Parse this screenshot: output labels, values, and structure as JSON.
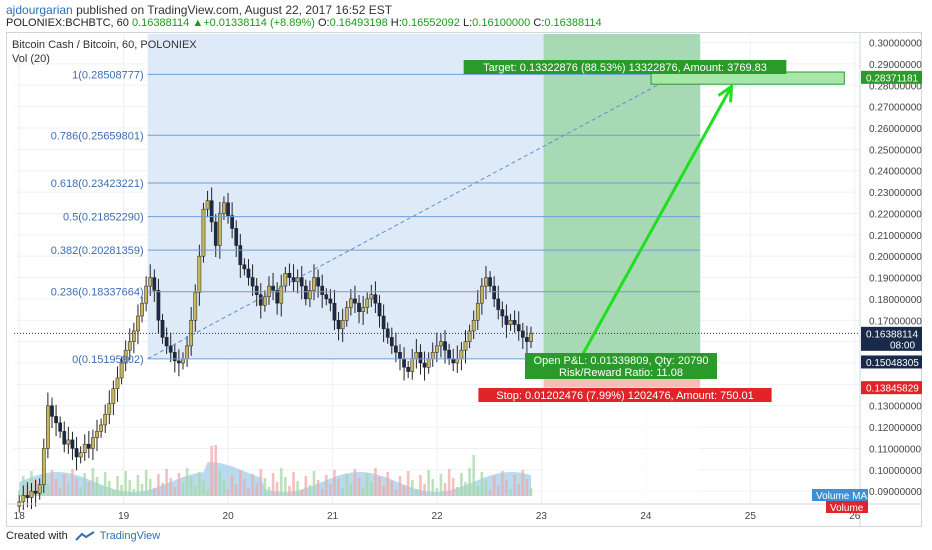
{
  "header": {
    "user": "ajdourgarian",
    "published": "published on TradingView.com, August 22, 2017 16:52 EST",
    "symbol": "POLONIEX:BCHBTC, 60",
    "last": "0.16388114",
    "arrow": "▲",
    "change": "+0.01338114 (+8.89%)",
    "o_label": "O:",
    "o": "0.16493198",
    "h_label": "H:",
    "h": "0.16552092",
    "l_label": "L:",
    "l": "0.16100000",
    "c_label": "C:",
    "c": "0.16388114"
  },
  "chart_title": "Bitcoin Cash / Bitcoin, 60, POLONIEX",
  "indicator": "Vol (20)",
  "footer": {
    "created": "Created with",
    "brand": "TradingView"
  },
  "colors": {
    "up": "#c8b560",
    "down": "#1a2a4a",
    "fib": "#6a9fd8",
    "fib_zone": "#dce8f8",
    "target_zone": "#9fd6a9",
    "stop_zone": "#f4b2b2",
    "arrow": "#22dd22",
    "volume_area": "#9ecae8",
    "price_tag": "#1a2a4a",
    "green_tag": "#2a9a2a",
    "red_tag": "#e0242a"
  },
  "chart_data": {
    "type": "candlestick",
    "title": "Bitcoin Cash / Bitcoin, 60, POLONIEX",
    "x_ticks": [
      "18",
      "19",
      "20",
      "21",
      "22",
      "23",
      "24",
      "25",
      "26"
    ],
    "y_ticks": [
      "0.30000000",
      "0.29000000",
      "0.28000000",
      "0.27000000",
      "0.26000000",
      "0.25000000",
      "0.24000000",
      "0.23000000",
      "0.22000000",
      "0.21000000",
      "0.20000000",
      "0.19000000",
      "0.18000000",
      "0.17000000",
      "0.16000000",
      "0.15000000",
      "0.14000000",
      "0.13000000",
      "0.12000000",
      "0.11000000",
      "0.10000000",
      "0.09000000"
    ],
    "ylim": [
      0.084,
      0.304
    ],
    "xlim": [
      17.95,
      26.05
    ],
    "fib_levels": [
      {
        "label": "1(0.28508777)",
        "value": 0.28508777
      },
      {
        "label": "0.786(0.25659801)",
        "value": 0.25659801
      },
      {
        "label": "0.618(0.23423221)",
        "value": 0.23423221
      },
      {
        "label": "0.5(0.21852290)",
        "value": 0.2185229
      },
      {
        "label": "0.382(0.20281359)",
        "value": 0.20281359
      },
      {
        "label": "0.236(0.18337664)",
        "value": 0.18337664
      },
      {
        "label": "0(0.15195802)",
        "value": 0.15195802
      }
    ],
    "fib_range": {
      "x_start": 19.23,
      "x_end": 24.52
    },
    "position": {
      "entry": 0.15048305,
      "target": 0.28371181,
      "stop": 0.13845829,
      "x_start": 23.02,
      "x_end": 24.52,
      "target_label": "Target: 0.13322876 (88.53%) 13322876, Amount: 3769.83",
      "stop_label": "Stop: 0.01202476 (7.99%) 1202476, Amount: 750.01",
      "pl_label": "Open P&L: 0.01339809, Qty: 20790",
      "rr_label": "Risk/Reward Ratio: 11.08"
    },
    "target_box": {
      "x_start": 24.05,
      "x_end": 25.9,
      "low": 0.2805,
      "high": 0.2862
    },
    "price_tags": [
      {
        "value": 0.28371181,
        "label": "0.28371181",
        "style": "green"
      },
      {
        "value": 0.16388114,
        "label": "0.16388114",
        "style": "dark",
        "sub": "08:00"
      },
      {
        "value": 0.15048305,
        "label": "0.15048305",
        "style": "dark"
      },
      {
        "value": 0.13845829,
        "label": "0.13845829",
        "style": "red"
      }
    ],
    "legend_tags": [
      "Volume MA",
      "Volume"
    ],
    "last_price": 0.16388114,
    "fib_trend": {
      "from": [
        19.23,
        0.152
      ],
      "to": [
        24.3,
        0.285
      ]
    },
    "projection_arrow": {
      "from": [
        23.4,
        0.1545
      ],
      "to": [
        24.82,
        0.2795
      ]
    },
    "candles_close": [
      0.085,
      0.088,
      0.087,
      0.09,
      0.089,
      0.093,
      0.11,
      0.13,
      0.125,
      0.122,
      0.118,
      0.112,
      0.114,
      0.11,
      0.106,
      0.108,
      0.112,
      0.11,
      0.115,
      0.118,
      0.121,
      0.126,
      0.131,
      0.138,
      0.143,
      0.15,
      0.156,
      0.16,
      0.165,
      0.172,
      0.178,
      0.186,
      0.19,
      0.184,
      0.17,
      0.162,
      0.158,
      0.155,
      0.151,
      0.15,
      0.152,
      0.158,
      0.17,
      0.183,
      0.2,
      0.222,
      0.226,
      0.216,
      0.205,
      0.22,
      0.225,
      0.219,
      0.213,
      0.205,
      0.196,
      0.194,
      0.19,
      0.186,
      0.182,
      0.177,
      0.181,
      0.186,
      0.184,
      0.178,
      0.186,
      0.192,
      0.19,
      0.188,
      0.19,
      0.186,
      0.18,
      0.184,
      0.19,
      0.186,
      0.182,
      0.18,
      0.178,
      0.17,
      0.166,
      0.17,
      0.176,
      0.18,
      0.178,
      0.174,
      0.176,
      0.18,
      0.182,
      0.178,
      0.172,
      0.166,
      0.162,
      0.158,
      0.155,
      0.152,
      0.148,
      0.146,
      0.152,
      0.155,
      0.15,
      0.148,
      0.152,
      0.155,
      0.158,
      0.16,
      0.156,
      0.152,
      0.15,
      0.152,
      0.156,
      0.16,
      0.165,
      0.17,
      0.178,
      0.186,
      0.19,
      0.186,
      0.18,
      0.175,
      0.172,
      0.168,
      0.17,
      0.168,
      0.165,
      0.162,
      0.16,
      0.164
    ],
    "candles_open": [
      0.083,
      0.085,
      0.088,
      0.087,
      0.09,
      0.089,
      0.093,
      0.11,
      0.13,
      0.125,
      0.122,
      0.118,
      0.112,
      0.114,
      0.11,
      0.106,
      0.108,
      0.112,
      0.11,
      0.115,
      0.118,
      0.121,
      0.126,
      0.131,
      0.138,
      0.143,
      0.15,
      0.156,
      0.16,
      0.165,
      0.172,
      0.178,
      0.186,
      0.19,
      0.184,
      0.17,
      0.162,
      0.158,
      0.155,
      0.151,
      0.15,
      0.152,
      0.158,
      0.17,
      0.183,
      0.2,
      0.222,
      0.226,
      0.216,
      0.205,
      0.22,
      0.225,
      0.219,
      0.213,
      0.205,
      0.196,
      0.194,
      0.19,
      0.186,
      0.182,
      0.177,
      0.181,
      0.186,
      0.184,
      0.178,
      0.186,
      0.192,
      0.19,
      0.188,
      0.19,
      0.186,
      0.18,
      0.184,
      0.19,
      0.186,
      0.182,
      0.18,
      0.178,
      0.17,
      0.166,
      0.17,
      0.176,
      0.18,
      0.178,
      0.174,
      0.176,
      0.18,
      0.182,
      0.178,
      0.172,
      0.166,
      0.162,
      0.158,
      0.155,
      0.152,
      0.148,
      0.146,
      0.152,
      0.155,
      0.15,
      0.148,
      0.152,
      0.155,
      0.158,
      0.16,
      0.156,
      0.152,
      0.15,
      0.152,
      0.156,
      0.16,
      0.165,
      0.17,
      0.178,
      0.186,
      0.19,
      0.186,
      0.18,
      0.175,
      0.172,
      0.168,
      0.17,
      0.168,
      0.165,
      0.162,
      0.16
    ],
    "x_first": 18.0,
    "x_last": 22.9
  }
}
